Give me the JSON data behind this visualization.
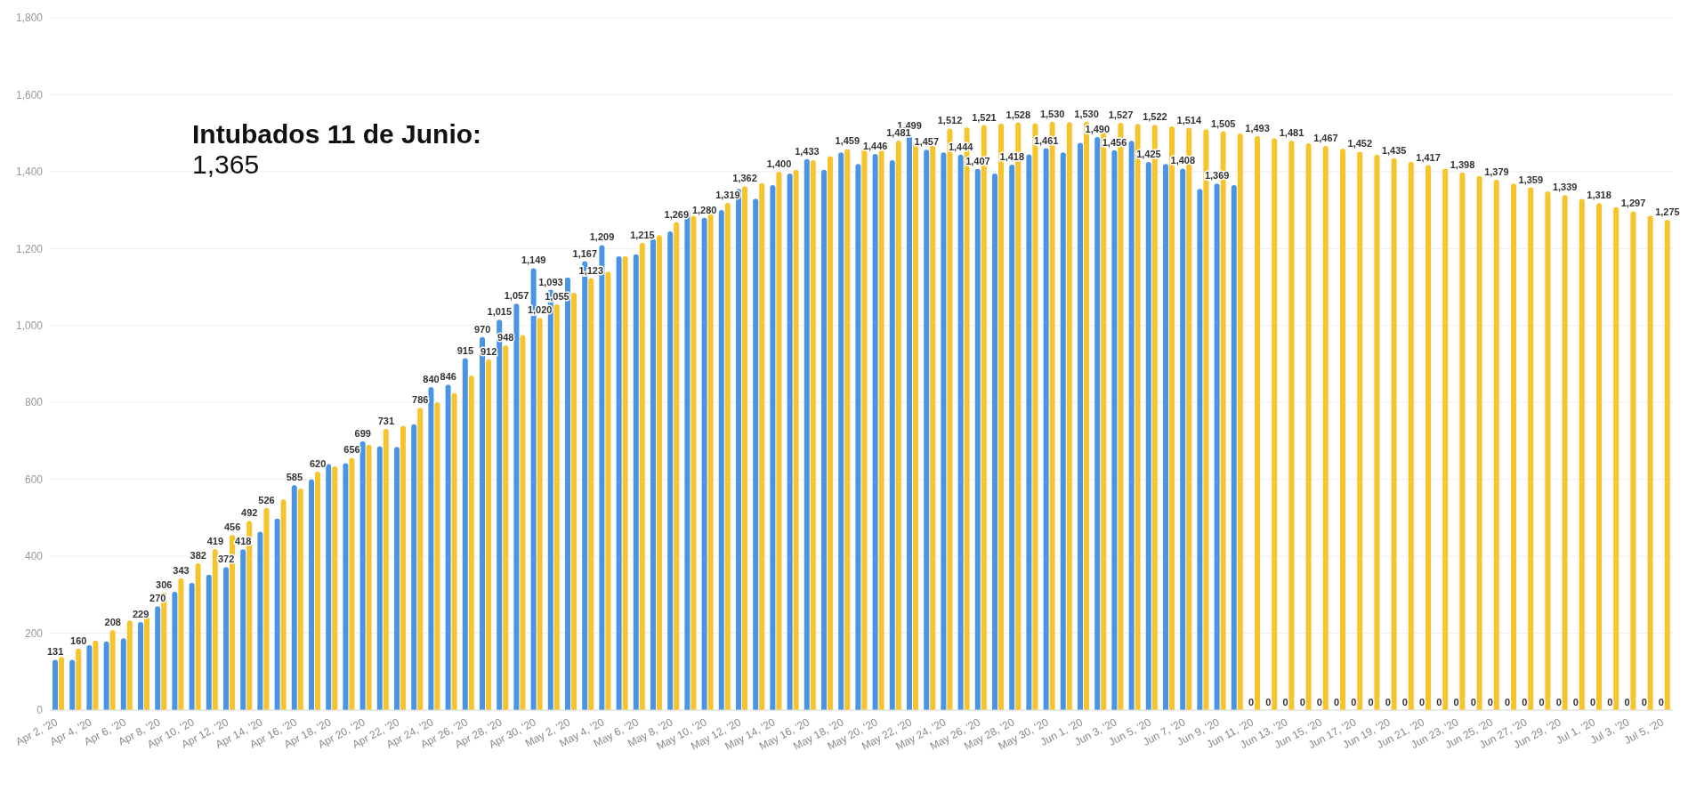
{
  "chart_data": {
    "type": "bar",
    "categories": [
      "Apr 2, '20",
      null,
      "Apr 4, '20",
      null,
      "Apr 6, '20",
      null,
      "Apr 8, '20",
      null,
      "Apr 10, '20",
      null,
      "Apr 12, '20",
      null,
      "Apr 14, '20",
      null,
      "Apr 16, '20",
      null,
      "Apr 18, '20",
      null,
      "Apr 20, '20",
      null,
      "Apr 22, '20",
      null,
      "Apr 24, '20",
      null,
      "Apr 26, '20",
      null,
      "Apr 28, '20",
      null,
      "Apr 30, '20",
      null,
      "May 2, '20",
      null,
      "May 4, '20",
      null,
      "May 6, '20",
      null,
      "May 8, '20",
      null,
      "May 10, '20",
      null,
      "May 12, '20",
      null,
      "May 14, '20",
      null,
      "May 16, '20",
      null,
      "May 18, '20",
      null,
      "May 20, '20",
      null,
      "May 22, '20",
      null,
      "May 24, '20",
      null,
      "May 26, '20",
      null,
      "May 28, '20",
      null,
      "May 30, '20",
      null,
      "Jun 1, '20",
      null,
      "Jun 3, '20",
      null,
      "Jun 5, '20",
      null,
      "Jun 7, '20",
      null,
      "Jun 9, '20",
      null,
      "Jun 11, '20",
      null,
      "Jun 13, '20",
      null,
      "Jun 15, '20",
      null,
      "Jun 17, '20",
      null,
      "Jun 19, '20",
      null,
      "Jun 21, '20",
      null,
      "Jun 23, '20",
      null,
      "Jun 25, '20",
      null,
      "Jun 27, '20",
      null,
      "Jun 29, '20",
      null,
      "Jul 1, '20",
      null,
      "Jul 3, '20",
      null,
      "Jul 5, '20"
    ],
    "series": [
      {
        "color": "#4a94e6",
        "values": [
          131,
          131,
          169,
          179,
          187,
          229,
          270,
          308,
          331,
          352,
          372,
          418,
          464,
          498,
          585,
          600,
          640,
          642,
          699,
          686,
          684,
          743,
          840,
          846,
          915,
          970,
          1015,
          1057,
          1149,
          1093,
          1125,
          1167,
          1209,
          1180,
          1185,
          1225,
          1245,
          1300,
          1280,
          1300,
          1355,
          1330,
          1365,
          1395,
          1433,
          1405,
          1450,
          1420,
          1446,
          1430,
          1499,
          1457,
          1450,
          1444,
          1407,
          1395,
          1418,
          1445,
          1461,
          1450,
          1475,
          1490,
          1456,
          1480,
          1425,
          1420,
          1408,
          1355,
          1369,
          1365,
          0,
          0,
          0,
          0,
          0,
          0,
          0,
          0,
          0,
          0,
          0,
          0,
          0,
          0,
          0,
          0,
          0,
          0,
          0,
          0,
          0,
          0,
          0,
          0,
          0
        ],
        "value_labels": [
          "131",
          null,
          null,
          null,
          null,
          "229",
          "270",
          null,
          null,
          null,
          "372",
          "418",
          null,
          null,
          "585",
          null,
          null,
          null,
          "699",
          null,
          null,
          null,
          "840",
          "846",
          "915",
          "970",
          "1,015",
          "1,057",
          "1,149",
          "1,093",
          null,
          "1,167",
          "1,209",
          null,
          null,
          null,
          null,
          null,
          "1,280",
          null,
          null,
          null,
          null,
          null,
          "1,433",
          null,
          null,
          null,
          "1,446",
          null,
          "1,499",
          "1,457",
          null,
          "1,444",
          "1,407",
          null,
          "1,418",
          null,
          "1,461",
          null,
          null,
          "1,490",
          "1,456",
          null,
          "1,425",
          null,
          "1,408",
          null,
          "1,369",
          null,
          "0",
          "0",
          "0",
          "0",
          "0",
          "0",
          "0",
          "0",
          "0",
          "0",
          "0",
          "0",
          "0",
          "0",
          "0",
          "0",
          "0",
          "0",
          "0",
          "0",
          "0",
          "0",
          "0",
          "0",
          "0"
        ]
      },
      {
        "color": "#f7c52b",
        "values": [
          138,
          160,
          181,
          208,
          233,
          242,
          306,
          343,
          382,
          419,
          456,
          492,
          526,
          548,
          576,
          620,
          634,
          656,
          690,
          731,
          739,
          786,
          800,
          825,
          870,
          912,
          948,
          975,
          1020,
          1055,
          1085,
          1123,
          1140,
          1180,
          1215,
          1235,
          1269,
          1285,
          1290,
          1319,
          1362,
          1370,
          1400,
          1405,
          1430,
          1440,
          1459,
          1462,
          1456,
          1481,
          1480,
          1470,
          1512,
          1515,
          1521,
          1525,
          1528,
          1526,
          1530,
          1529,
          1530,
          1520,
          1527,
          1524,
          1522,
          1518,
          1514,
          1510,
          1505,
          1499,
          1493,
          1487,
          1481,
          1474,
          1467,
          1460,
          1452,
          1444,
          1435,
          1426,
          1417,
          1408,
          1398,
          1389,
          1379,
          1369,
          1359,
          1349,
          1339,
          1329,
          1318,
          1308,
          1297,
          1286,
          1275
        ],
        "value_labels": [
          null,
          "160",
          null,
          "208",
          null,
          null,
          "306",
          "343",
          "382",
          "419",
          "456",
          "492",
          "526",
          null,
          null,
          "620",
          null,
          "656",
          null,
          "731",
          null,
          "786",
          null,
          null,
          null,
          "912",
          "948",
          null,
          "1,020",
          "1,055",
          null,
          "1,123",
          null,
          null,
          "1,215",
          null,
          "1,269",
          null,
          null,
          "1,319",
          "1,362",
          null,
          "1,400",
          null,
          null,
          null,
          "1,459",
          null,
          null,
          "1,481",
          null,
          null,
          "1,512",
          null,
          "1,521",
          null,
          "1,528",
          null,
          "1,530",
          null,
          "1,530",
          null,
          "1,527",
          null,
          "1,522",
          null,
          "1,514",
          null,
          "1,505",
          null,
          "1,493",
          null,
          "1,481",
          null,
          "1,467",
          null,
          "1,452",
          null,
          "1,435",
          null,
          "1,417",
          null,
          "1,398",
          null,
          "1,379",
          null,
          "1,359",
          null,
          "1,339",
          null,
          "1,318",
          null,
          "1,297",
          null,
          "1,275"
        ]
      }
    ],
    "ylim": [
      0,
      1800
    ],
    "yticks": [
      0,
      200,
      400,
      600,
      800,
      {
        "value": 1000,
        "label": "1,000"
      },
      {
        "value": 1200,
        "label": "1,200"
      },
      {
        "value": 1400,
        "label": "1,400"
      },
      {
        "value": 1600,
        "label": "1,600"
      },
      {
        "value": 1800,
        "label": "1,800"
      }
    ],
    "grid": "y",
    "annotations": [
      "Intubados 11 de Junio:",
      "1,365"
    ]
  }
}
